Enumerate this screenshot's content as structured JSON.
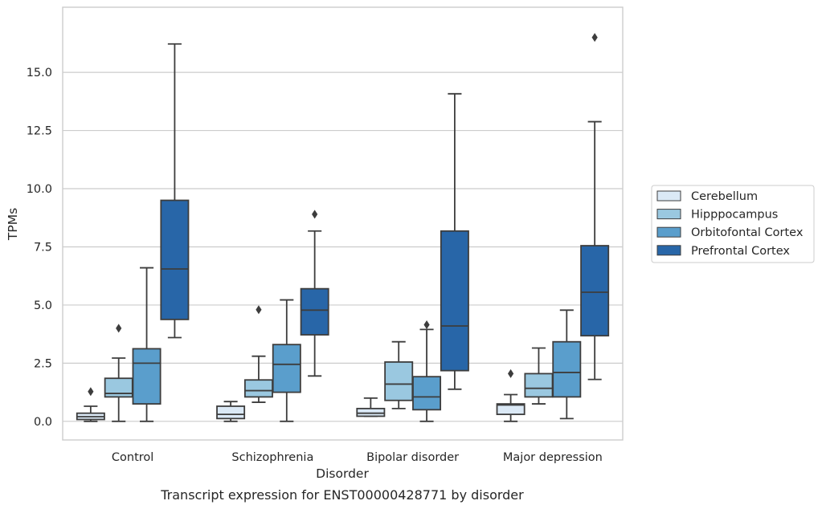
{
  "chart_data": {
    "type": "box",
    "title": "",
    "caption": "Transcript expression for ENST00000428771 by disorder",
    "xlabel": "Disorder",
    "ylabel": "TPMs",
    "ylim": [
      -0.8,
      17.8
    ],
    "yticks": [
      0.0,
      2.5,
      5.0,
      7.5,
      10.0,
      12.5,
      15.0
    ],
    "ytick_labels": [
      "0.0",
      "2.5",
      "5.0",
      "7.5",
      "10.0",
      "12.5",
      "15.0"
    ],
    "grid": "horizontal",
    "legend_position": "right",
    "categories": [
      "Control",
      "Schizophrenia",
      "Bipolar disorder",
      "Major depression"
    ],
    "series": [
      {
        "name": "Cerebellum",
        "color": "#dbe9f6",
        "boxes": [
          {
            "min": 0.0,
            "q1": 0.08,
            "median": 0.2,
            "q3": 0.35,
            "max": 0.65,
            "outliers": [
              1.28
            ]
          },
          {
            "min": 0.0,
            "q1": 0.12,
            "median": 0.3,
            "q3": 0.65,
            "max": 0.85,
            "outliers": []
          },
          {
            "min": 0.22,
            "q1": 0.22,
            "median": 0.35,
            "q3": 0.55,
            "max": 1.0,
            "outliers": []
          },
          {
            "min": 0.0,
            "q1": 0.3,
            "median": 0.7,
            "q3": 0.75,
            "max": 1.15,
            "outliers": [
              2.05
            ]
          }
        ]
      },
      {
        "name": "Hipppocampus",
        "color": "#9ac8e0",
        "boxes": [
          {
            "min": 0.0,
            "q1": 1.05,
            "median": 1.2,
            "q3": 1.85,
            "max": 2.72,
            "outliers": [
              4.0
            ]
          },
          {
            "min": 0.82,
            "q1": 1.05,
            "median": 1.32,
            "q3": 1.78,
            "max": 2.8,
            "outliers": [
              4.8
            ]
          },
          {
            "min": 0.55,
            "q1": 0.9,
            "median": 1.6,
            "q3": 2.55,
            "max": 3.42,
            "outliers": []
          },
          {
            "min": 0.75,
            "q1": 1.05,
            "median": 1.42,
            "q3": 2.05,
            "max": 3.15,
            "outliers": []
          }
        ]
      },
      {
        "name": "Orbitofontal Cortex",
        "color": "#5a9ecc",
        "boxes": [
          {
            "min": 0.0,
            "q1": 0.75,
            "median": 2.5,
            "q3": 3.12,
            "max": 6.6,
            "outliers": []
          },
          {
            "min": 0.0,
            "q1": 1.25,
            "median": 2.45,
            "q3": 3.3,
            "max": 5.22,
            "outliers": []
          },
          {
            "min": 0.0,
            "q1": 0.5,
            "median": 1.05,
            "q3": 1.92,
            "max": 3.95,
            "outliers": [
              4.15
            ]
          },
          {
            "min": 0.12,
            "q1": 1.05,
            "median": 2.1,
            "q3": 3.42,
            "max": 4.78,
            "outliers": []
          }
        ]
      },
      {
        "name": "Prefrontal Cortex",
        "color": "#2866a8",
        "boxes": [
          {
            "min": 3.6,
            "q1": 4.38,
            "median": 6.55,
            "q3": 9.5,
            "max": 16.22,
            "outliers": []
          },
          {
            "min": 1.95,
            "q1": 3.72,
            "median": 4.78,
            "q3": 5.7,
            "max": 8.18,
            "outliers": [
              8.9
            ]
          },
          {
            "min": 1.38,
            "q1": 2.18,
            "median": 4.1,
            "q3": 8.18,
            "max": 14.08,
            "outliers": []
          },
          {
            "min": 1.8,
            "q1": 3.68,
            "median": 5.55,
            "q3": 7.55,
            "max": 12.88,
            "outliers": [
              16.5
            ]
          }
        ]
      }
    ]
  }
}
